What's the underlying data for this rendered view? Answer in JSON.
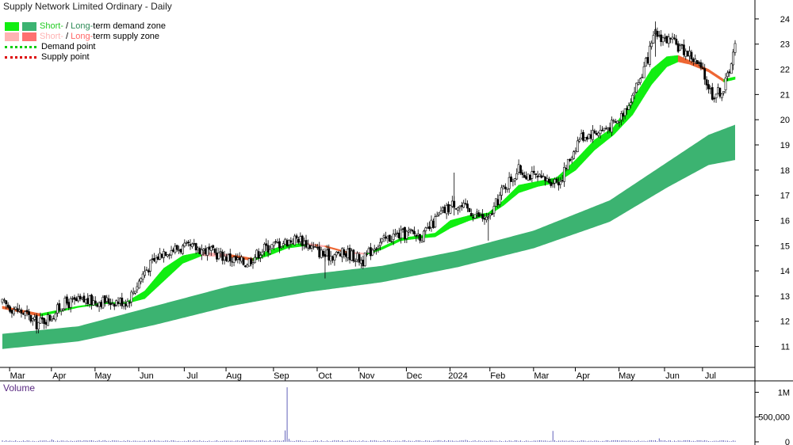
{
  "title": "Supply Network Limited Ordinary - Daily",
  "legend": {
    "demand_zone": {
      "short": "Short-",
      "sep": " / ",
      "long": "Long-",
      "rest": "term demand zone"
    },
    "supply_zone": {
      "short": "Short-",
      "sep": " / ",
      "long": "Long-",
      "rest": "term supply zone"
    },
    "demand_point": "Demand point",
    "supply_point": "Supply point"
  },
  "colors": {
    "short_demand": "#11ee11",
    "long_demand": "#3cb371",
    "short_supply": "#ffb3b3",
    "long_supply": "#ff7070",
    "demand_point": "#00cc00",
    "supply_point": "#dd0000",
    "short_demand_text": "#22cc22",
    "long_demand_text": "#2e8b57",
    "short_supply_text": "#ffb3b3",
    "long_supply_text": "#ff6666",
    "volume": "#3a3aa8",
    "volume_label": "#5a2a82",
    "candle_up": "#ffffff",
    "candle_down": "#000000"
  },
  "chart_data": {
    "type": "candlestick",
    "title": "Supply Network Limited Ordinary - Daily",
    "y_axis": {
      "position": "right",
      "ticks": [
        11,
        12,
        13,
        14,
        15,
        16,
        17,
        18,
        19,
        20,
        21,
        22,
        23,
        24
      ],
      "range": [
        10.2,
        24.5
      ]
    },
    "x_axis": {
      "ticks": [
        "Mar",
        "Apr",
        "May",
        "Jun",
        "Jul",
        "Aug",
        "Sep",
        "Oct",
        "Nov",
        "Dec",
        "2024",
        "Feb",
        "Mar",
        "Apr",
        "May",
        "Jun",
        "Jul"
      ],
      "tick_index": [
        8,
        30,
        53,
        76,
        100,
        122,
        147,
        170,
        192,
        217,
        240,
        261,
        284,
        306,
        329,
        353,
        373
      ]
    },
    "grid": false,
    "price_anchors": [
      [
        0,
        12.7
      ],
      [
        12,
        12.3
      ],
      [
        18,
        11.9
      ],
      [
        26,
        12.2
      ],
      [
        32,
        12.7
      ],
      [
        42,
        12.8
      ],
      [
        52,
        12.8
      ],
      [
        66,
        12.8
      ],
      [
        75,
        14.0
      ],
      [
        85,
        14.8
      ],
      [
        93,
        14.9
      ],
      [
        103,
        14.9
      ],
      [
        116,
        14.6
      ],
      [
        128,
        14.3
      ],
      [
        138,
        14.9
      ],
      [
        146,
        15.1
      ],
      [
        156,
        15.3
      ],
      [
        170,
        14.6
      ],
      [
        182,
        14.7
      ],
      [
        190,
        14.4
      ],
      [
        196,
        15.0
      ],
      [
        206,
        15.4
      ],
      [
        215,
        15.5
      ],
      [
        222,
        15.4
      ],
      [
        230,
        16.2
      ],
      [
        238,
        16.7
      ],
      [
        248,
        16.3
      ],
      [
        256,
        16.0
      ],
      [
        264,
        17.3
      ],
      [
        272,
        18.0
      ],
      [
        284,
        17.6
      ],
      [
        294,
        17.6
      ],
      [
        304,
        19.3
      ],
      [
        316,
        19.6
      ],
      [
        324,
        19.9
      ],
      [
        332,
        21.0
      ],
      [
        338,
        22.0
      ],
      [
        344,
        23.4
      ],
      [
        352,
        23.1
      ],
      [
        362,
        22.6
      ],
      [
        368,
        22.0
      ],
      [
        374,
        21.0
      ],
      [
        380,
        21.2
      ],
      [
        386,
        22.9
      ]
    ],
    "short_term_zone": [
      [
        0,
        12.6,
        12.5
      ],
      [
        20,
        12.3,
        12.2
      ],
      [
        40,
        12.6,
        12.55
      ],
      [
        55,
        12.75,
        12.7
      ],
      [
        65,
        12.75,
        12.7
      ],
      [
        75,
        13.2,
        12.9
      ],
      [
        85,
        14.1,
        13.6
      ],
      [
        95,
        14.6,
        14.3
      ],
      [
        105,
        14.75,
        14.6
      ],
      [
        120,
        14.65,
        14.55
      ],
      [
        132,
        14.5,
        14.4
      ],
      [
        140,
        14.8,
        14.6
      ],
      [
        150,
        15.05,
        14.9
      ],
      [
        160,
        15.1,
        15.0
      ],
      [
        170,
        15.0,
        14.95
      ],
      [
        182,
        14.75,
        14.7
      ],
      [
        192,
        14.7,
        14.65
      ],
      [
        200,
        14.95,
        14.85
      ],
      [
        210,
        15.3,
        15.2
      ],
      [
        220,
        15.4,
        15.3
      ],
      [
        228,
        15.5,
        15.35
      ],
      [
        236,
        16.0,
        15.7
      ],
      [
        246,
        16.2,
        16.0
      ],
      [
        256,
        16.3,
        16.2
      ],
      [
        264,
        16.8,
        16.6
      ],
      [
        272,
        17.4,
        17.1
      ],
      [
        282,
        17.55,
        17.35
      ],
      [
        292,
        17.7,
        17.5
      ],
      [
        302,
        18.4,
        18.0
      ],
      [
        312,
        19.2,
        18.8
      ],
      [
        322,
        19.7,
        19.4
      ],
      [
        332,
        20.8,
        20.2
      ],
      [
        342,
        22.0,
        21.4
      ],
      [
        350,
        22.5,
        22.1
      ],
      [
        356,
        22.55,
        22.3
      ],
      [
        362,
        22.35,
        22.2
      ],
      [
        372,
        22.0,
        21.9
      ],
      [
        380,
        21.6,
        21.5
      ],
      [
        386,
        21.7,
        21.6
      ]
    ],
    "long_term_zone": [
      [
        0,
        11.5,
        10.9
      ],
      [
        40,
        11.8,
        11.2
      ],
      [
        80,
        12.6,
        11.85
      ],
      [
        120,
        13.4,
        12.6
      ],
      [
        160,
        13.85,
        13.15
      ],
      [
        200,
        14.2,
        13.55
      ],
      [
        240,
        14.8,
        14.15
      ],
      [
        280,
        15.6,
        14.9
      ],
      [
        320,
        16.8,
        15.95
      ],
      [
        350,
        18.3,
        17.3
      ],
      [
        372,
        19.4,
        18.2
      ],
      [
        386,
        19.8,
        18.4
      ]
    ],
    "volume_axis": {
      "ticks_labels": [
        "1M",
        "500,000",
        "0"
      ],
      "ticks": [
        1000000,
        500000,
        0
      ]
    },
    "volume_anchors": [
      [
        0,
        15000
      ],
      [
        60,
        20000
      ],
      [
        150,
        1100000
      ],
      [
        186,
        30000
      ],
      [
        270,
        25000
      ],
      [
        290,
        220000
      ],
      [
        386,
        20000
      ]
    ],
    "volume_spikes": [
      [
        150,
        1100000
      ],
      [
        149,
        230000
      ],
      [
        151,
        60000
      ],
      [
        290,
        220000
      ],
      [
        26,
        50000
      ],
      [
        80,
        35000
      ],
      [
        244,
        40000
      ],
      [
        346,
        70000
      ]
    ]
  },
  "volume_label": "Volume"
}
